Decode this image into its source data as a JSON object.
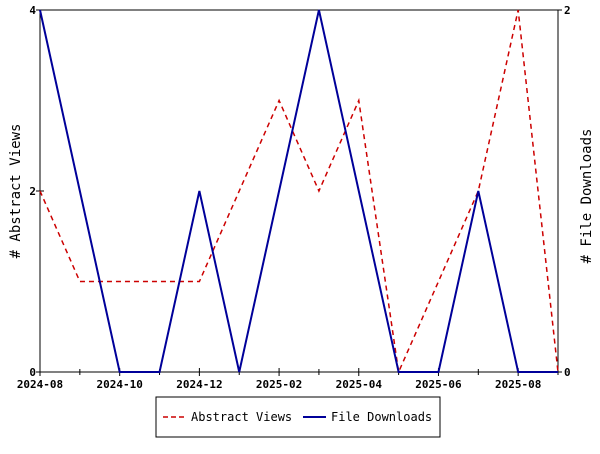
{
  "chart_data": {
    "type": "line",
    "x": [
      "2024-08",
      "2024-09",
      "2024-10",
      "2024-11",
      "2024-12",
      "2025-01",
      "2025-02",
      "2025-03",
      "2025-04",
      "2025-05",
      "2025-06",
      "2025-07",
      "2025-08",
      "2025-09"
    ],
    "x_tick_labels": [
      "2024-08",
      "2024-10",
      "2024-12",
      "2025-02",
      "2025-04",
      "2025-06",
      "2025-08"
    ],
    "series": [
      {
        "name": "Abstract Views",
        "axis": "left",
        "color": "#cc0000",
        "style": "dashed",
        "values": [
          2,
          1,
          1,
          1,
          1,
          2,
          3,
          2,
          3,
          0,
          1,
          2,
          4,
          0
        ]
      },
      {
        "name": "File Downloads",
        "axis": "right",
        "color": "#000099",
        "style": "solid",
        "values": [
          2,
          1,
          0,
          0,
          1,
          0,
          1,
          2,
          1,
          0,
          0,
          1,
          0,
          0
        ]
      }
    ],
    "ylabel": "# Abstract Views",
    "y2label": "# File Downloads",
    "ylim": [
      0,
      4
    ],
    "y2lim": [
      0,
      2
    ],
    "yticks": [
      0,
      2,
      4
    ],
    "y2ticks": [
      0,
      2
    ],
    "grid": false,
    "legend_position": "bottom-center"
  }
}
